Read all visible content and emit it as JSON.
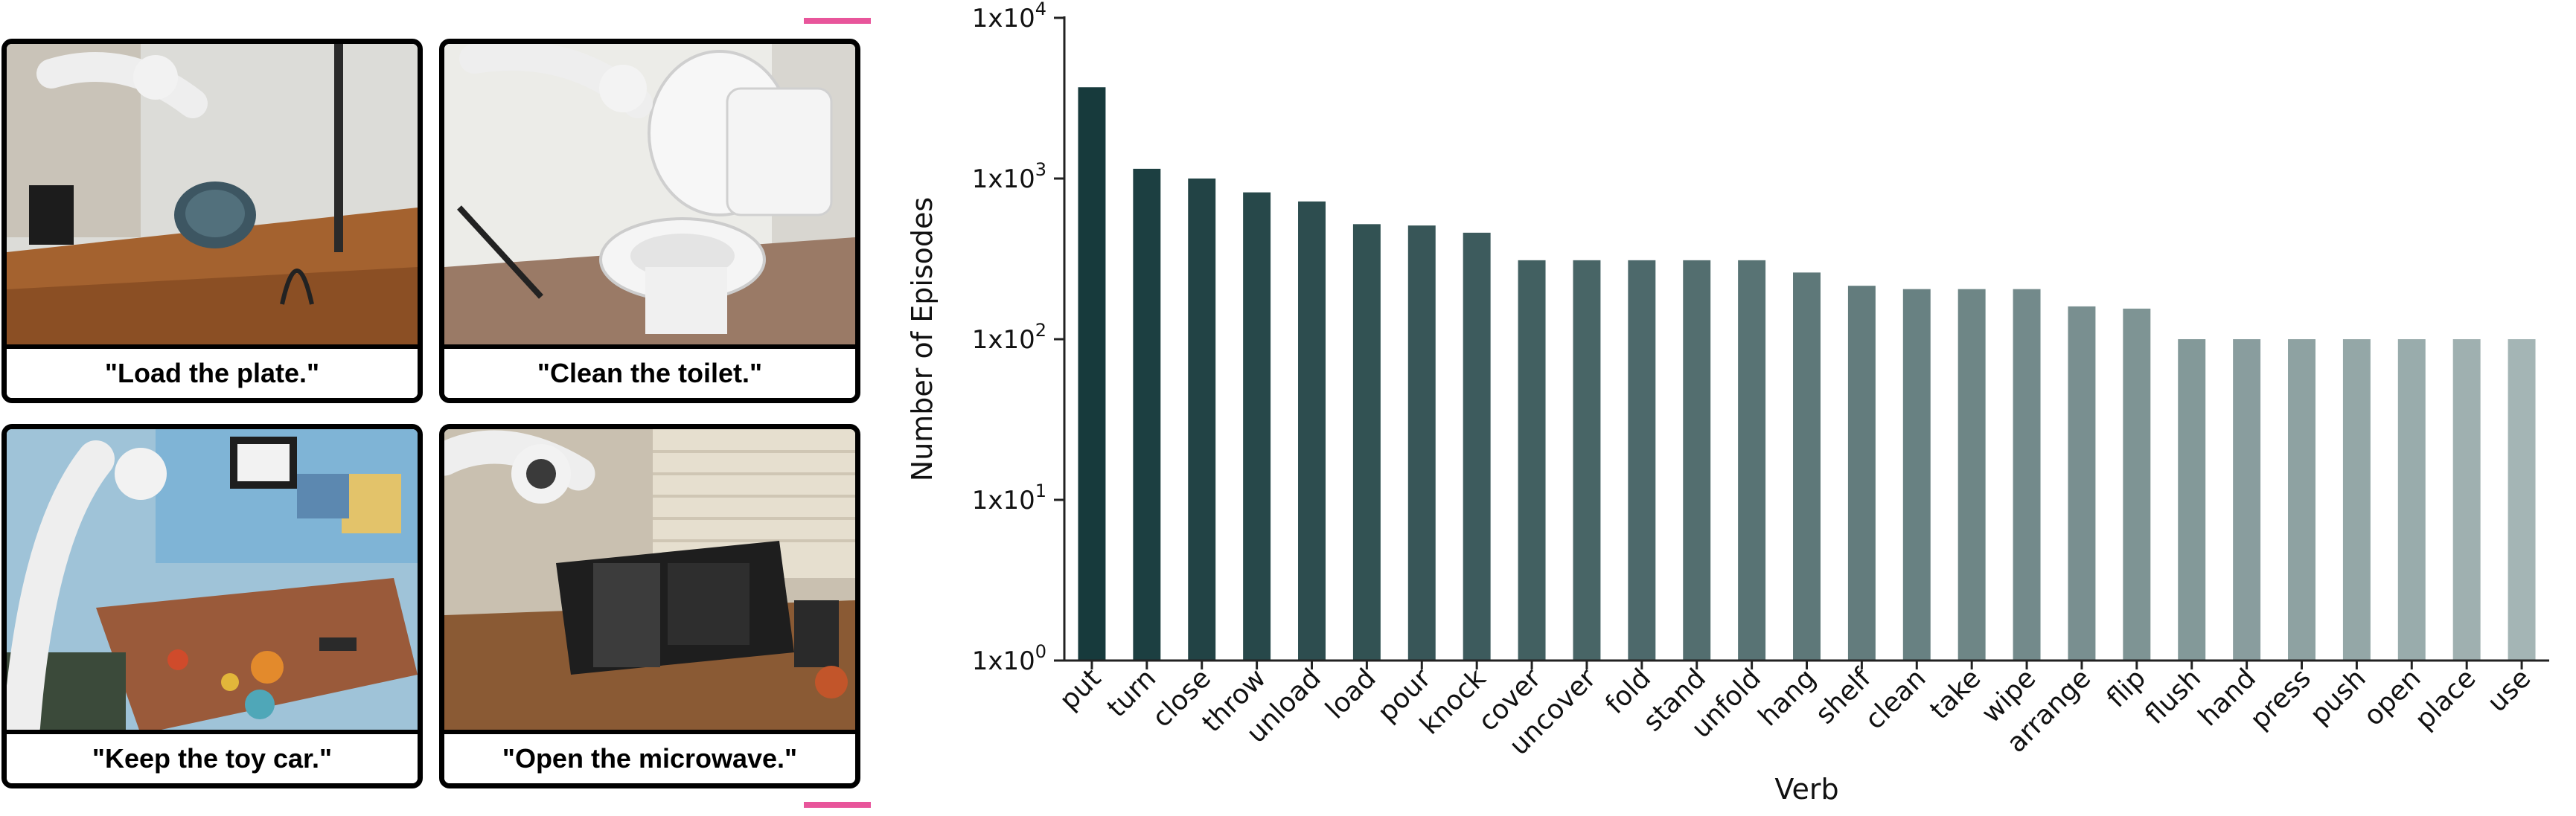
{
  "panels": [
    {
      "caption": "\"Load the plate.\""
    },
    {
      "caption": "\"Clean the toilet.\""
    },
    {
      "caption": "\"Keep the toy car.\""
    },
    {
      "caption": "\"Open the microwave.\""
    }
  ],
  "colors": {
    "bracket": "#e8559b",
    "bar_dark": "#173a3c",
    "bar_light": "#a4b5b5"
  },
  "chart_data": {
    "type": "bar",
    "xlabel": "Verb",
    "ylabel": "Number of Episodes",
    "yscale": "log",
    "ylim": [
      1,
      10000
    ],
    "yticks": [
      {
        "value": 1,
        "base": "1x10",
        "exp": "0"
      },
      {
        "value": 10,
        "base": "1x10",
        "exp": "1"
      },
      {
        "value": 100,
        "base": "1x10",
        "exp": "2"
      },
      {
        "value": 1000,
        "base": "1x10",
        "exp": "3"
      },
      {
        "value": 10000,
        "base": "1x10",
        "exp": "4"
      }
    ],
    "categories": [
      "put",
      "turn",
      "close",
      "throw",
      "unload",
      "load",
      "pour",
      "knock",
      "cover",
      "uncover",
      "fold",
      "stand",
      "unfold",
      "hang",
      "shelf",
      "clean",
      "take",
      "wipe",
      "arrange",
      "flip",
      "flush",
      "hand",
      "press",
      "push",
      "open",
      "place",
      "use"
    ],
    "values": [
      3700,
      1150,
      1000,
      820,
      720,
      520,
      510,
      460,
      310,
      310,
      310,
      310,
      310,
      260,
      215,
      205,
      205,
      205,
      160,
      155,
      100,
      100,
      100,
      100,
      100,
      100,
      100
    ]
  }
}
